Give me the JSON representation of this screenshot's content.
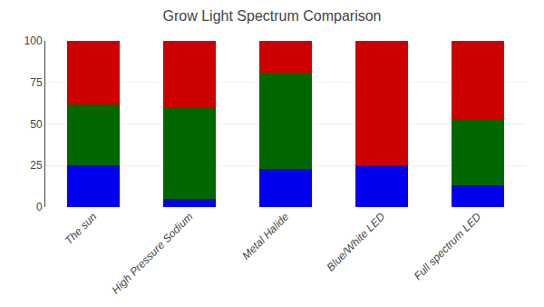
{
  "chart_data": {
    "type": "bar",
    "title": "Grow Light Spectrum Comparison",
    "categories": [
      "The sun",
      "High Pressure Sodium",
      "Metal Halide",
      "Blue/White LED",
      "Full spectrum LED"
    ],
    "series": [
      {
        "color": "#0000ee",
        "values": [
          25,
          5,
          23,
          25,
          13
        ]
      },
      {
        "color": "#006600",
        "values": [
          37,
          55,
          58,
          0,
          40
        ]
      },
      {
        "color": "#cc0000",
        "values": [
          38,
          40,
          19,
          75,
          47
        ]
      }
    ],
    "stacked": true,
    "ylim": [
      0,
      100
    ],
    "yticks": [
      0,
      25,
      50,
      75,
      100
    ],
    "grid": true
  }
}
